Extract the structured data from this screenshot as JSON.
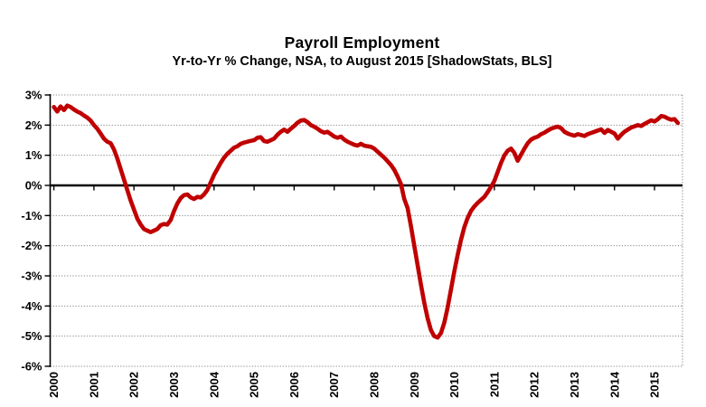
{
  "page": {
    "title": "Payroll Employment",
    "subtitle": "Yr-to-Yr % Change, NSA, to August 2015 [ShadowStats, BLS]"
  },
  "chart_data": {
    "type": "line",
    "title": "Payroll Employment",
    "subtitle": "Yr-to-Yr % Change, NSA, to August 2015 [ShadowStats, BLS]",
    "x_unit": "month",
    "x_first": "2000-01",
    "x_last": "2015-08",
    "x_tick_labels": [
      "2000",
      "2001",
      "2002",
      "2003",
      "2004",
      "2005",
      "2006",
      "2007",
      "2008",
      "2009",
      "2010",
      "2011",
      "2012",
      "2013",
      "2014",
      "2015"
    ],
    "y_tick_labels": [
      "3%",
      "2%",
      "1%",
      "0%",
      "-1%",
      "-2%",
      "-3%",
      "-4%",
      "-5%",
      "-6%"
    ],
    "ylim": [
      -6,
      3
    ],
    "y_tick_step": 1,
    "grid": true,
    "legend": "none",
    "zero_axis_emphasized": true,
    "series": [
      {
        "name": "Payroll Employment Yr-to-Yr % Change (NSA)",
        "color": "#c00000",
        "values": [
          2.6,
          2.45,
          2.62,
          2.5,
          2.65,
          2.6,
          2.52,
          2.45,
          2.4,
          2.32,
          2.25,
          2.15,
          2.0,
          1.88,
          1.72,
          1.55,
          1.45,
          1.4,
          1.2,
          0.9,
          0.55,
          0.2,
          -0.15,
          -0.5,
          -0.8,
          -1.1,
          -1.3,
          -1.45,
          -1.5,
          -1.55,
          -1.5,
          -1.45,
          -1.32,
          -1.28,
          -1.3,
          -1.15,
          -0.85,
          -0.6,
          -0.42,
          -0.32,
          -0.3,
          -0.4,
          -0.45,
          -0.38,
          -0.4,
          -0.3,
          -0.15,
          0.1,
          0.35,
          0.55,
          0.75,
          0.92,
          1.05,
          1.15,
          1.25,
          1.3,
          1.38,
          1.42,
          1.45,
          1.48,
          1.5,
          1.58,
          1.6,
          1.47,
          1.45,
          1.5,
          1.55,
          1.68,
          1.78,
          1.85,
          1.78,
          1.88,
          1.97,
          2.08,
          2.15,
          2.17,
          2.1,
          2.0,
          1.95,
          1.88,
          1.8,
          1.75,
          1.78,
          1.7,
          1.62,
          1.58,
          1.62,
          1.52,
          1.45,
          1.4,
          1.35,
          1.32,
          1.38,
          1.32,
          1.3,
          1.28,
          1.22,
          1.12,
          1.02,
          0.92,
          0.8,
          0.68,
          0.52,
          0.3,
          0.05,
          -0.45,
          -0.75,
          -1.35,
          -2.0,
          -2.65,
          -3.3,
          -3.9,
          -4.4,
          -4.8,
          -5.0,
          -5.05,
          -4.9,
          -4.55,
          -4.05,
          -3.45,
          -2.85,
          -2.3,
          -1.8,
          -1.38,
          -1.08,
          -0.85,
          -0.7,
          -0.58,
          -0.48,
          -0.38,
          -0.22,
          -0.05,
          0.15,
          0.45,
          0.75,
          1.0,
          1.15,
          1.22,
          1.08,
          0.82,
          1.02,
          1.22,
          1.4,
          1.52,
          1.58,
          1.62,
          1.7,
          1.75,
          1.82,
          1.88,
          1.92,
          1.95,
          1.9,
          1.78,
          1.72,
          1.68,
          1.65,
          1.7,
          1.67,
          1.64,
          1.7,
          1.74,
          1.78,
          1.82,
          1.86,
          1.74,
          1.84,
          1.78,
          1.72,
          1.55,
          1.68,
          1.78,
          1.85,
          1.92,
          1.96,
          2.0,
          1.97,
          2.04,
          2.1,
          2.16,
          2.12,
          2.2,
          2.3,
          2.28,
          2.22,
          2.18,
          2.2,
          2.07
        ]
      }
    ]
  },
  "style": {
    "accent_red": "#c00000",
    "grid_color": "#8c8c8c",
    "axis_color": "#000000",
    "background": "#ffffff",
    "text_color": "#000000"
  }
}
